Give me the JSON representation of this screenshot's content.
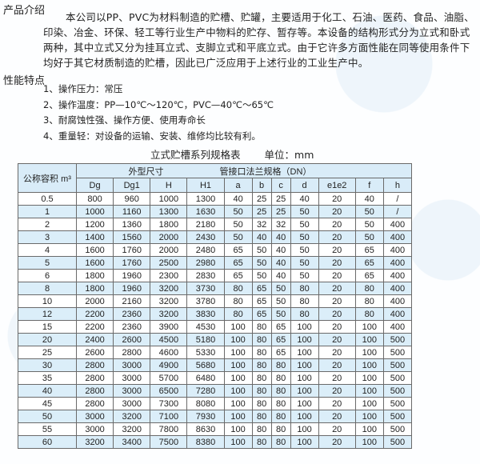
{
  "intro": {
    "heading": "产品介绍",
    "text": "本公司以PP、PVC为材料制造的贮槽、贮罐，主要适用于化工、石油、医药、食品、油脂、印染、冶金、环保、轻工等行业生产中物料的贮存、暂存等。本设备的结构形式分为立式和卧式两种，其中立式又分为挂耳立式、支脚立式和平底立式。由于它许多方面性能在同等使用条件下均好于其它材质制造的贮槽，因此已广泛应用于上述行业的工业生产中。"
  },
  "features": {
    "heading": "性能特点",
    "items": [
      "1、操作压力：常压",
      "2、操作温度：PP—10℃～120℃，PVC—40℃～65℃",
      "3、耐腐蚀性强、操作方便、使用寿命长",
      "4、重量轻：对设备的运输、安装、维修均比较有利。"
    ]
  },
  "table": {
    "title": "立式贮槽系列规格表",
    "unit": "单位：mm",
    "header_capacity": "公称容积 m³",
    "header_group1": "外型尺寸",
    "header_group2": "管接口法兰规格（DN）",
    "columns": [
      "Dg",
      "Dg1",
      "H",
      "H1",
      "a",
      "b",
      "c",
      "d",
      "e1e2",
      "f",
      "h"
    ],
    "rows": [
      [
        "0.5",
        "800",
        "960",
        "1000",
        "1300",
        "40",
        "25",
        "25",
        "40",
        "20",
        "40",
        "/"
      ],
      [
        "1",
        "1000",
        "1160",
        "1300",
        "1630",
        "50",
        "25",
        "25",
        "50",
        "20",
        "50",
        "/"
      ],
      [
        "2",
        "1200",
        "1360",
        "1800",
        "2180",
        "50",
        "32",
        "32",
        "50",
        "20",
        "50",
        "400"
      ],
      [
        "3",
        "1400",
        "1560",
        "2000",
        "2430",
        "50",
        "40",
        "40",
        "50",
        "20",
        "50",
        "400"
      ],
      [
        "4",
        "1600",
        "1760",
        "2000",
        "2480",
        "65",
        "50",
        "40",
        "50",
        "20",
        "65",
        "400"
      ],
      [
        "5",
        "1600",
        "1760",
        "2500",
        "2980",
        "65",
        "50",
        "40",
        "50",
        "20",
        "65",
        "400"
      ],
      [
        "6",
        "1800",
        "1960",
        "2300",
        "2830",
        "65",
        "50",
        "40",
        "50",
        "20",
        "65",
        "400"
      ],
      [
        "8",
        "1800",
        "1960",
        "3200",
        "3730",
        "80",
        "65",
        "50",
        "80",
        "20",
        "80",
        "400"
      ],
      [
        "10",
        "2000",
        "2160",
        "3200",
        "3780",
        "80",
        "65",
        "50",
        "80",
        "20",
        "80",
        "400"
      ],
      [
        "12",
        "2200",
        "2360",
        "3200",
        "3830",
        "80",
        "65",
        "50",
        "80",
        "20",
        "80",
        "400"
      ],
      [
        "15",
        "2200",
        "2360",
        "3900",
        "4530",
        "100",
        "80",
        "65",
        "100",
        "20",
        "100",
        "400"
      ],
      [
        "20",
        "2400",
        "2600",
        "4500",
        "5180",
        "100",
        "80",
        "65",
        "100",
        "20",
        "100",
        "500"
      ],
      [
        "25",
        "2600",
        "2800",
        "4600",
        "5330",
        "100",
        "80",
        "65",
        "100",
        "20",
        "100",
        "500"
      ],
      [
        "30",
        "2800",
        "3000",
        "4900",
        "5680",
        "100",
        "80",
        "80",
        "100",
        "20",
        "100",
        "500"
      ],
      [
        "35",
        "2800",
        "3000",
        "5700",
        "6480",
        "100",
        "80",
        "80",
        "100",
        "20",
        "100",
        "500"
      ],
      [
        "40",
        "2800",
        "3000",
        "6500",
        "7280",
        "100",
        "80",
        "80",
        "100",
        "20",
        "100",
        "500"
      ],
      [
        "45",
        "2800",
        "3000",
        "7300",
        "8080",
        "100",
        "80",
        "80",
        "100",
        "20",
        "100",
        "500"
      ],
      [
        "50",
        "3000",
        "3200",
        "7100",
        "7930",
        "100",
        "80",
        "80",
        "100",
        "20",
        "100",
        "500"
      ],
      [
        "55",
        "3000",
        "3200",
        "7800",
        "8630",
        "100",
        "80",
        "80",
        "100",
        "20",
        "100",
        "500"
      ],
      [
        "60",
        "3200",
        "3400",
        "7500",
        "8380",
        "100",
        "80",
        "80",
        "100",
        "20",
        "100",
        "500"
      ]
    ]
  },
  "colors": {
    "row_alt": "#dbeef9",
    "header": "#d9ecf8"
  }
}
